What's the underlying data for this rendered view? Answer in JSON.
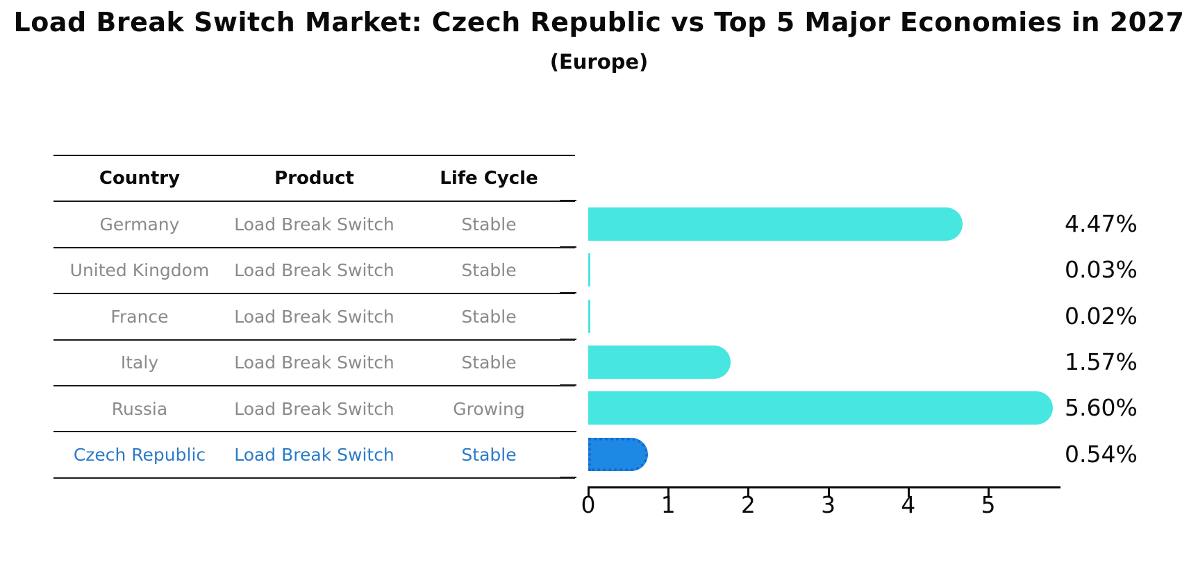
{
  "title": "Load Break Switch Market: Czech Republic vs Top 5 Major Economies in 2027",
  "subtitle": "(Europe)",
  "table": {
    "headers": [
      "Country",
      "Product",
      "Life Cycle"
    ],
    "rows": [
      {
        "country": "Germany",
        "product": "Load Break Switch",
        "life_cycle": "Stable",
        "highlight": false
      },
      {
        "country": "United Kingdom",
        "product": "Load Break Switch",
        "life_cycle": "Stable",
        "highlight": false
      },
      {
        "country": "France",
        "product": "Load Break Switch",
        "life_cycle": "Stable",
        "highlight": false
      },
      {
        "country": "Italy",
        "product": "Load Break Switch",
        "life_cycle": "Stable",
        "highlight": false
      },
      {
        "country": "Russia",
        "product": "Load Break Switch",
        "life_cycle": "Growing",
        "highlight": false
      },
      {
        "country": "Czech Republic",
        "product": "Load Break Switch",
        "life_cycle": "Stable",
        "highlight": true
      }
    ]
  },
  "chart_data": {
    "type": "bar",
    "orientation": "horizontal",
    "title": "Load Break Switch Market: Czech Republic vs Top 5 Major Economies in 2027",
    "subtitle": "(Europe)",
    "categories": [
      "Germany",
      "United Kingdom",
      "France",
      "Italy",
      "Russia",
      "Czech Republic"
    ],
    "values": [
      4.47,
      0.03,
      0.02,
      1.57,
      5.6,
      0.54
    ],
    "value_labels": [
      "4.47%",
      "0.03%",
      "0.02%",
      "1.57%",
      "5.60%",
      "0.54%"
    ],
    "xlabel": "",
    "ylabel": "",
    "xlim": [
      0,
      5.87
    ],
    "x_ticks": [
      "0",
      "1",
      "2",
      "3",
      "4",
      "5"
    ],
    "grid": false,
    "legend": "none",
    "highlight_index": 5
  },
  "colors": {
    "bar_cyan": "#48e6e0",
    "bar_blue": "#1e88e5",
    "text_gray": "#8a8a8a",
    "text_blue": "#2b7bc9",
    "text_black": "#0a0a0a"
  }
}
